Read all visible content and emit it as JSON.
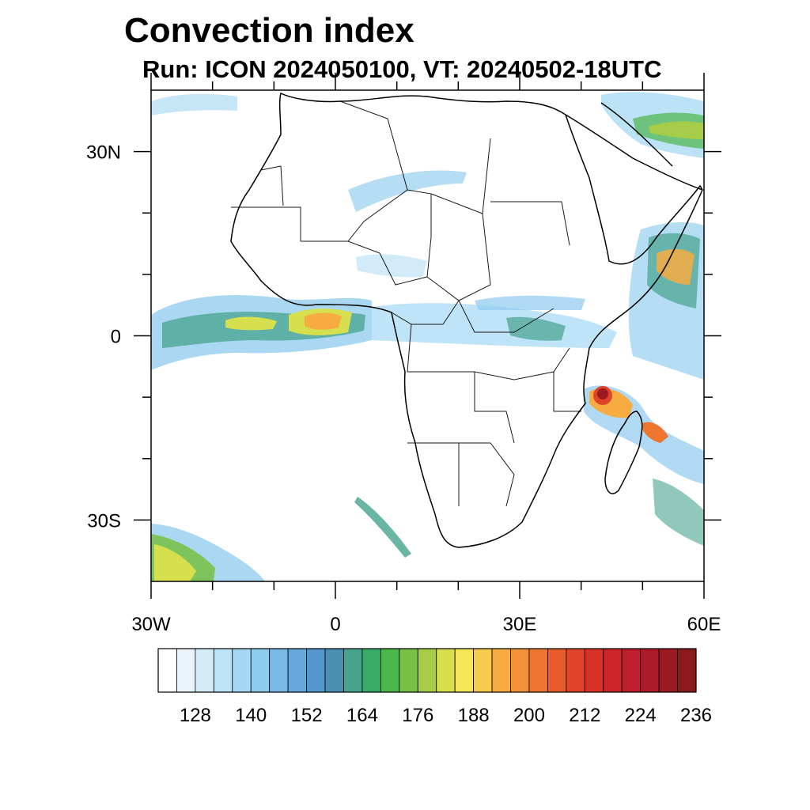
{
  "header": {
    "title": "Convection index",
    "subtitle": "Run: ICON 2024050100,  VT: 20240502-18UTC"
  },
  "map": {
    "lon_range": [
      -30,
      60
    ],
    "lat_range": [
      -40,
      40
    ],
    "lon_ticks": [
      {
        "lon": -30,
        "label": "30W"
      },
      {
        "lon": 0,
        "label": "0"
      },
      {
        "lon": 30,
        "label": "30E"
      },
      {
        "lon": 60,
        "label": "60E"
      }
    ],
    "lat_ticks": [
      {
        "lat": 30,
        "label": "30N"
      },
      {
        "lat": 0,
        "label": "0"
      },
      {
        "lat": -30,
        "label": "30S"
      }
    ],
    "minor_lon_ticks": [
      -20,
      -10,
      10,
      20,
      40,
      50
    ],
    "minor_lat_ticks": [
      20,
      10,
      -10,
      -20
    ]
  },
  "colorbar": {
    "tick_labels": [
      "128",
      "140",
      "152",
      "164",
      "176",
      "188",
      "200",
      "212",
      "224",
      "236"
    ],
    "colors": [
      "#ffffff",
      "#e9f5fb",
      "#d3ecf8",
      "#bde3f6",
      "#a5d8f3",
      "#8ecbee",
      "#79b9e5",
      "#66a8dc",
      "#5596cc",
      "#4b8fb3",
      "#46a38e",
      "#3aab66",
      "#4cb74a",
      "#76c143",
      "#a7cc4a",
      "#d6df4e",
      "#f4e659",
      "#f7cb4c",
      "#f6ac41",
      "#f39138",
      "#ee7630",
      "#e75c2a",
      "#e04428",
      "#d83228",
      "#cd2428",
      "#bf1e2d",
      "#ad1a2a",
      "#9a1a22",
      "#8a1a1e"
    ]
  },
  "colors": {
    "line": "#000000"
  }
}
